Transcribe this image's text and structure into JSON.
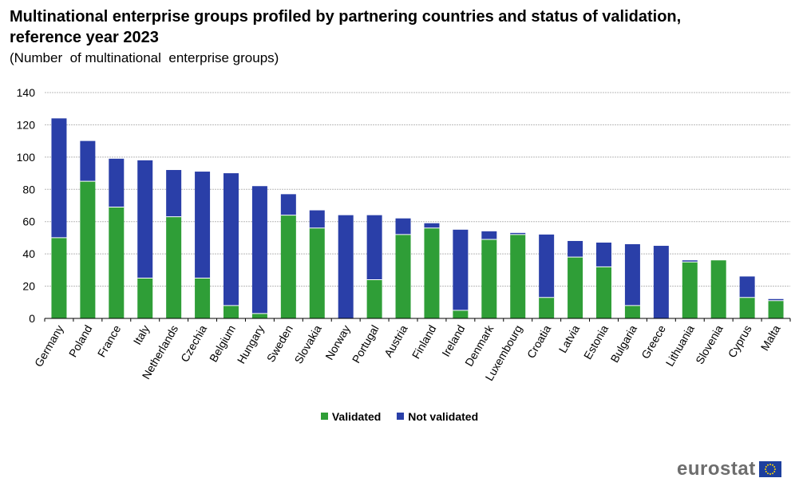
{
  "title": "Multinational enterprise groups profiled by partnering countries and status of validation, reference year 2023",
  "subtitle": "(Number  of multinational  enterprise groups)",
  "colors": {
    "validated": "#2f9e37",
    "not_validated": "#2a3fa8",
    "grid": "#b8b8b8"
  },
  "legend": {
    "validated_label": "Validated",
    "not_validated_label": "Not validated"
  },
  "brand": {
    "name": "eurostat"
  },
  "chart_data": {
    "type": "bar",
    "stacked": true,
    "title": "Multinational enterprise groups profiled by partnering countries and status of validation, reference year 2023",
    "ylabel": "Number of multinational enterprise groups",
    "ylim": [
      0,
      140
    ],
    "yticks": [
      0,
      20,
      40,
      60,
      80,
      100,
      120,
      140
    ],
    "categories": [
      "Germany",
      "Poland",
      "France",
      "Italy",
      "Netherlands",
      "Czechia",
      "Belgium",
      "Hungary",
      "Sweden",
      "Slovakia",
      "Norway",
      "Portugal",
      "Austria",
      "Finland",
      "Ireland",
      "Denmark",
      "Luxembourg",
      "Croatia",
      "Latvia",
      "Estonia",
      "Bulgaria",
      "Greece",
      "Lithuania",
      "Slovenia",
      "Cyprus",
      "Malta"
    ],
    "series": [
      {
        "name": "Validated",
        "values": [
          50,
          85,
          69,
          25,
          63,
          25,
          8,
          3,
          64,
          56,
          0,
          24,
          52,
          56,
          5,
          49,
          52,
          13,
          38,
          32,
          8,
          0,
          35,
          36,
          13,
          11
        ]
      },
      {
        "name": "Not validated",
        "values": [
          74,
          25,
          30,
          73,
          29,
          66,
          82,
          79,
          13,
          11,
          64,
          40,
          10,
          3,
          50,
          5,
          1,
          39,
          10,
          15,
          38,
          45,
          1,
          0,
          13,
          1
        ]
      }
    ],
    "grid": true,
    "legend_position": "bottom"
  }
}
